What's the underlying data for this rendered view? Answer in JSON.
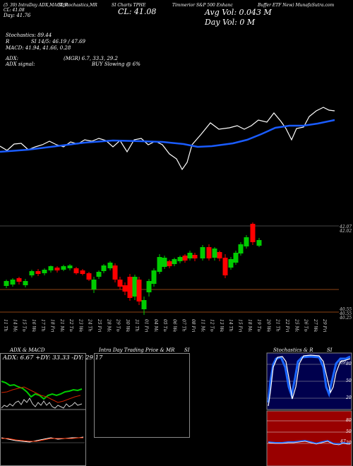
{
  "header": {
    "line1": "(5_39) IntraDay ADX,MACD,R",
    "line2": "SI,Stochastics,MR",
    "line3": "SI Charts TPHE",
    "sub1": "CL: 41.08",
    "sub2": "Day: 41.76",
    "cl_big": "CL: 41.08",
    "company": "Timmerior S&P 500 Enhanc",
    "company2": "Buffer ETF New) MunafaSutra.com",
    "avg_vol": "Avg Vol: 0.043 M",
    "day_vol": "Day Vol: 0   M"
  },
  "indicators": {
    "stoch": "Stochastics: 89.44",
    "rsi": "SI 14/5: 46.19 / 47.69",
    "r_label": "R",
    "macd": "MACD: 41.94, 41.66, 0.28",
    "macd_c": "C",
    "adx": "ADX:",
    "adx_vals": "(MGR) 6.7, 33.3, 29.2",
    "adx_signal": "ADX signal:",
    "buy": "BUY Slowing @ 6%"
  },
  "price_labels": {
    "p1": "42.07",
    "p2": "42.02",
    "p3": "40.55",
    "p4": "40.55",
    "p5": "40.25"
  },
  "dates": [
    "11 Thu Oct",
    "14 Mon Oct",
    "15 Tue Oct",
    "16 Wed Oct",
    "17 Thu Oct",
    "18 Fri Oct",
    "21 Mon Oct",
    "22 Tue Oct",
    "23 Wed Oct",
    "24 Thu Oct",
    "25 Fri Oct",
    "28 Mon Oct",
    "29 Tue Oct",
    "30 Wed Oct",
    "31 Thu Oct",
    "01 Fri Nov",
    "04 Mon Nov",
    "05 Tue Nov",
    "06 Wed Nov",
    "07 Thu Nov",
    "08 Fri Nov",
    "11 Mon Nov",
    "12 Tue Nov",
    "13 Wed Nov",
    "14 Thu Nov",
    "15 Fri Nov",
    "18 Mon Nov",
    "19 Tue Nov",
    "20 Wed Nov",
    "21 Thu Nov",
    "22 Fri Nov",
    "25 Mon Nov",
    "26 Tue Nov",
    "27 Wed Nov",
    "29 Fri Nov"
  ],
  "bottom_panels": {
    "adx_title": "ADX & MACD",
    "adx_values": "ADX: 6.67 +DY: 33.33 -DY: 29.17",
    "intra_title": "Intra Day Trading Price & MR",
    "intra_si": "SI",
    "stoch_title": "Stochastics & R",
    "stoch_si": "SI",
    "stoch_ticks": [
      "80",
      "50",
      "20"
    ],
    "rsi_ticks": [
      "80",
      "50",
      "20"
    ],
    "stoch_value": "89",
    "rsi_value": "47"
  },
  "colors": {
    "up": "#00cc00",
    "down": "#ff0000",
    "ma": "#1a5cff",
    "stoch_bg": "#00004d",
    "rsi_bg": "#990000"
  }
}
